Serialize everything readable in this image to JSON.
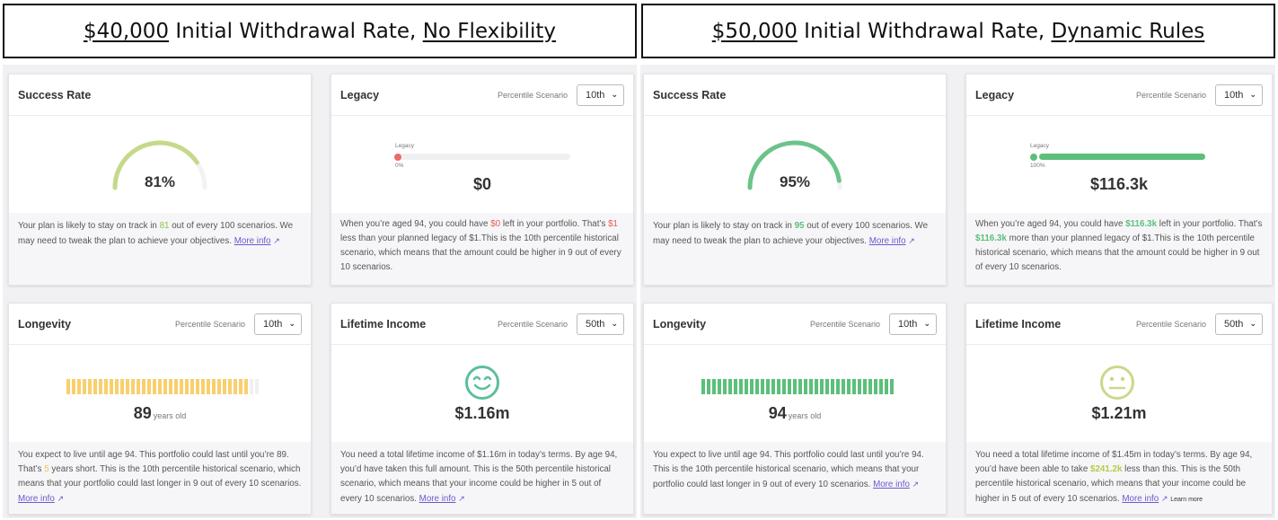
{
  "headers": {
    "left": {
      "amount": "$40,000",
      "middle": " Initial Withdrawal Rate, ",
      "mode": "No Flexibility"
    },
    "right": {
      "amount": "$50,000",
      "middle": " Initial Withdrawal Rate, ",
      "mode": "Dynamic Rules"
    }
  },
  "common": {
    "success_title": "Success Rate",
    "legacy_title": "Legacy",
    "longevity_title": "Longevity",
    "income_title": "Lifetime Income",
    "percentile_label": "Percentile Scenario",
    "legacy_mini_label": "Legacy",
    "years_old": "years old",
    "more_info": "More info",
    "learn_more": "Learn more"
  },
  "colors": {
    "gauge_left": "#c5d98a",
    "gauge_right": "#6cc38a",
    "bar_yellow": "#f9cf6e",
    "bar_green": "#5cbf7a",
    "legacy_red": "#ec6a6a",
    "legacy_green": "#5cbf7a",
    "face_green": "#5cbf9a",
    "face_yellow": "#c9d98a"
  },
  "left": {
    "success": {
      "value": "81%",
      "fraction": 0.81,
      "desc_a": "Your plan is likely to stay on track in ",
      "desc_num": "81",
      "desc_b": " out of every 100 scenarios. We may need to tweak the plan to achieve your objectives. "
    },
    "legacy": {
      "percentile": "10th",
      "mini_pct": "0%",
      "fill_fraction": 0.0,
      "value": "$0",
      "desc_a": "When you’re aged 94, you could have ",
      "desc_h1": "$0",
      "desc_b": " left in your portfolio. That’s ",
      "desc_h2": "$1",
      "desc_c": " less than your planned legacy of $1.This is the 10th percentile historical scenario, which means that the amount could be higher in 9 out of every 10 scenarios."
    },
    "longevity": {
      "percentile": "10th",
      "age": "89",
      "filled_bars": 34,
      "total_bars": 36,
      "desc_a": "You expect to live until age 94. This portfolio could last until you’re 89. That’s ",
      "desc_h": "5",
      "desc_b": " years short. This is the 10th percentile historical scenario, which means that your portfolio could last longer in 9 out of every 10 scenarios. "
    },
    "income": {
      "percentile": "50th",
      "face": "happy-face-icon",
      "value": "$1.16m",
      "desc_a": "You need a total lifetime income of $1.16m in today’s terms. By age 94, you’d have taken this full amount. This is the 50th percentile historical scenario, which means that your income could be higher in 5 out of every 10 scenarios. "
    }
  },
  "right": {
    "success": {
      "value": "95%",
      "fraction": 0.95,
      "desc_a": "Your plan is likely to stay on track in ",
      "desc_num": "95",
      "desc_b": " out of every 100 scenarios. We may need to tweak the plan to achieve your objectives. "
    },
    "legacy": {
      "percentile": "10th",
      "mini_pct": "100%",
      "fill_fraction": 1.0,
      "value": "$116.3k",
      "desc_a": "When you’re aged 94, you could have ",
      "desc_h1": "$116.3k",
      "desc_b": " left in your portfolio. That’s ",
      "desc_h2": "$116.3k",
      "desc_c": " more than your planned legacy of $1.This is the 10th percentile historical scenario, which means that the amount could be higher in 9 out of every 10 scenarios."
    },
    "longevity": {
      "percentile": "10th",
      "age": "94",
      "filled_bars": 36,
      "total_bars": 36,
      "desc_a": "You expect to live until age 94. This portfolio could last until you’re 94. This is the 10th percentile historical scenario, which means that your portfolio could last longer in 9 out of every 10 scenarios. "
    },
    "income": {
      "percentile": "50th",
      "face": "neutral-face-icon",
      "value": "$1.21m",
      "desc_a": "You need a total lifetime income of $1.45m in today’s terms. By age 94, you’d have been able to take ",
      "desc_h": "$241.2k",
      "desc_b": " less than this. This is the 50th percentile historical scenario, which means that your income could be higher in 5 out of every 10 scenarios. "
    }
  }
}
